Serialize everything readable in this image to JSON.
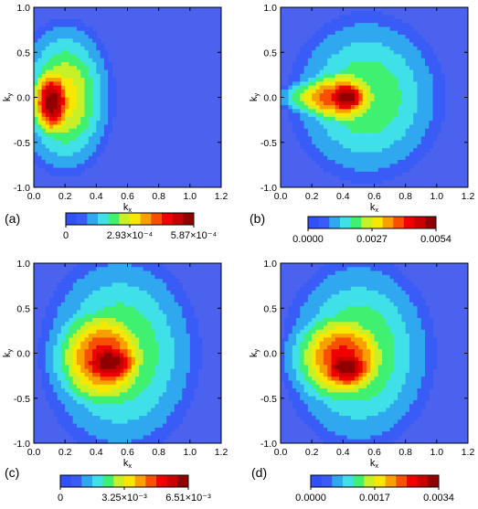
{
  "chart_data": [
    {
      "type": "heatmap",
      "panel_label": "(a)",
      "xlabel": "k",
      "xlabel_sub": "x",
      "ylabel": "k",
      "ylabel_sub": "y",
      "xlim": [
        0.0,
        1.2
      ],
      "ylim": [
        -1.0,
        1.0
      ],
      "xticks": [
        "0.0",
        "0.2",
        "0.4",
        "0.6",
        "0.8",
        "1.0",
        "1.2"
      ],
      "yticks": [
        "-1.0",
        "-0.5",
        "0.0",
        "0.5",
        "1.0"
      ],
      "colorbar": {
        "min": 0,
        "max": 0.000587,
        "tick_labels": [
          "0",
          "2.93×10⁻⁴",
          "5.87×10⁻⁴"
        ]
      },
      "peak": {
        "kx": 0.12,
        "ky": -0.05
      },
      "blob_extent": {
        "kx": [
          0.0,
          0.58
        ],
        "ky": [
          -0.9,
          0.85
        ]
      }
    },
    {
      "type": "heatmap",
      "panel_label": "(b)",
      "xlabel": "k",
      "xlabel_sub": "x",
      "ylabel": "k",
      "ylabel_sub": "y",
      "xlim": [
        0.0,
        1.2
      ],
      "ylim": [
        -1.0,
        1.0
      ],
      "xticks": [
        "0.0",
        "0.2",
        "0.4",
        "0.6",
        "0.8",
        "1.0",
        "1.2"
      ],
      "yticks": [
        "-1.0",
        "-0.5",
        "0.0",
        "0.5",
        "1.0"
      ],
      "colorbar": {
        "min": 0,
        "max": 0.0054,
        "tick_labels": [
          "0.0000",
          "0.0027",
          "0.0054"
        ]
      },
      "peak": {
        "kx": 0.42,
        "ky": 0.0
      },
      "blob_extent": {
        "kx": [
          0.03,
          1.0
        ],
        "ky": [
          -1.0,
          1.0
        ]
      }
    },
    {
      "type": "heatmap",
      "panel_label": "(c)",
      "xlabel": "k",
      "xlabel_sub": "x",
      "ylabel": "k",
      "ylabel_sub": "y",
      "xlim": [
        0.0,
        1.2
      ],
      "ylim": [
        -1.0,
        1.0
      ],
      "xticks": [
        "0.0",
        "0.2",
        "0.4",
        "0.6",
        "0.8",
        "1.0",
        "1.2"
      ],
      "yticks": [
        "-1.0",
        "-0.5",
        "0.0",
        "0.5",
        "1.0"
      ],
      "colorbar": {
        "min": 0,
        "max": 0.00651,
        "tick_labels": [
          "0",
          "3.25×10⁻³",
          "6.51×10⁻³"
        ]
      },
      "peak": {
        "kx": 0.48,
        "ky": -0.1
      },
      "blob_extent": {
        "kx": [
          0.12,
          1.02
        ],
        "ky": [
          -1.0,
          1.0
        ]
      }
    },
    {
      "type": "heatmap",
      "panel_label": "(d)",
      "xlabel": "k",
      "xlabel_sub": "x",
      "ylabel": "k",
      "ylabel_sub": "y",
      "xlim": [
        0.0,
        1.2
      ],
      "ylim": [
        -1.0,
        1.0
      ],
      "xticks": [
        "0.0",
        "0.2",
        "0.4",
        "0.6",
        "0.8",
        "1.0",
        "1.2"
      ],
      "yticks": [
        "-1.0",
        "-0.5",
        "0.0",
        "0.5",
        "1.0"
      ],
      "colorbar": {
        "min": 0,
        "max": 0.0034,
        "tick_labels": [
          "0.0000",
          "0.0017",
          "0.0034"
        ]
      },
      "peak": {
        "kx": 0.42,
        "ky": -0.15
      },
      "blob_extent": {
        "kx": [
          0.05,
          0.95
        ],
        "ky": [
          -1.0,
          1.0
        ]
      }
    }
  ],
  "colormap": [
    "#3050f8",
    "#3a5cf6",
    "#30a8f0",
    "#40e0e8",
    "#40f070",
    "#c8f028",
    "#f8e800",
    "#f8a000",
    "#f85000",
    "#f00000",
    "#c80000",
    "#900000"
  ],
  "background_color": "#4a62ee"
}
